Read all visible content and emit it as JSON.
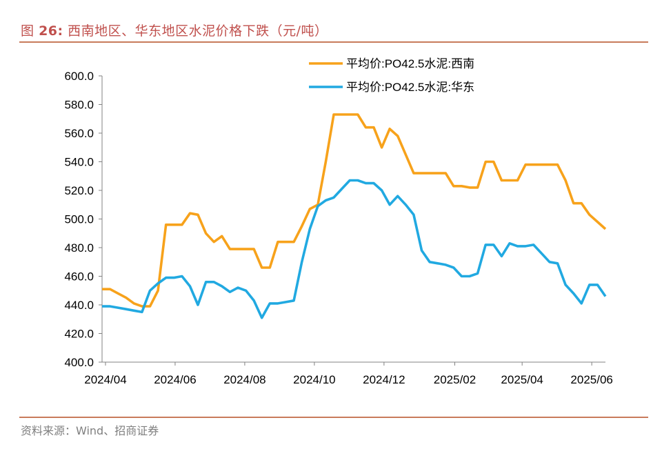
{
  "figure": {
    "label": "图",
    "number": "26:",
    "title": "西南地区、华东地区水泥价格下跌（元/吨）",
    "source": "资料来源：Wind、招商证券"
  },
  "chart_data": {
    "type": "line",
    "title": "西南地区、华东地区水泥价格下跌（元/吨）",
    "xlabel": "",
    "ylabel": "",
    "ylim": [
      400,
      600
    ],
    "y_ticks": [
      400,
      420,
      440,
      460,
      480,
      500,
      520,
      540,
      560,
      580,
      600
    ],
    "y_tick_labels": [
      "400.0",
      "420.0",
      "440.0",
      "460.0",
      "480.0",
      "500.0",
      "520.0",
      "540.0",
      "560.0",
      "580.0",
      "600.0"
    ],
    "x_range": [
      "2024-03-29",
      "2025-06-13"
    ],
    "x_tick_dates": [
      "2024-04-01",
      "2024-06-01",
      "2024-08-01",
      "2024-10-01",
      "2024-12-01",
      "2025-02-01",
      "2025-04-01",
      "2025-06-01"
    ],
    "x_tick_labels": [
      "2024/04",
      "2024/06",
      "2024/08",
      "2024/10",
      "2024/12",
      "2025/02",
      "2025/04",
      "2025/06"
    ],
    "grid": false,
    "legend_position": "top-right",
    "series": [
      {
        "name": "平均价:PO42.5水泥:西南",
        "color": "#f7a21b",
        "points": [
          [
            "2024-03-29",
            451
          ],
          [
            "2024-04-05",
            451
          ],
          [
            "2024-04-12",
            448
          ],
          [
            "2024-04-19",
            445
          ],
          [
            "2024-04-26",
            441
          ],
          [
            "2024-05-03",
            439
          ],
          [
            "2024-05-10",
            439
          ],
          [
            "2024-05-17",
            450
          ],
          [
            "2024-05-24",
            496
          ],
          [
            "2024-05-31",
            496
          ],
          [
            "2024-06-07",
            496
          ],
          [
            "2024-06-14",
            504
          ],
          [
            "2024-06-21",
            503
          ],
          [
            "2024-06-28",
            490
          ],
          [
            "2024-07-05",
            484
          ],
          [
            "2024-07-12",
            488
          ],
          [
            "2024-07-19",
            479
          ],
          [
            "2024-07-26",
            479
          ],
          [
            "2024-08-02",
            479
          ],
          [
            "2024-08-09",
            479
          ],
          [
            "2024-08-16",
            466
          ],
          [
            "2024-08-23",
            466
          ],
          [
            "2024-08-30",
            484
          ],
          [
            "2024-09-06",
            484
          ],
          [
            "2024-09-13",
            484
          ],
          [
            "2024-09-20",
            495
          ],
          [
            "2024-09-27",
            507
          ],
          [
            "2024-10-04",
            510
          ],
          [
            "2024-10-11",
            540
          ],
          [
            "2024-10-18",
            573
          ],
          [
            "2024-10-25",
            573
          ],
          [
            "2024-11-01",
            573
          ],
          [
            "2024-11-08",
            573
          ],
          [
            "2024-11-15",
            564
          ],
          [
            "2024-11-22",
            564
          ],
          [
            "2024-11-29",
            550
          ],
          [
            "2024-12-06",
            563
          ],
          [
            "2024-12-13",
            558
          ],
          [
            "2024-12-20",
            545
          ],
          [
            "2024-12-27",
            532
          ],
          [
            "2025-01-03",
            532
          ],
          [
            "2025-01-10",
            532
          ],
          [
            "2025-01-17",
            532
          ],
          [
            "2025-01-24",
            532
          ],
          [
            "2025-01-31",
            523
          ],
          [
            "2025-02-07",
            523
          ],
          [
            "2025-02-14",
            522
          ],
          [
            "2025-02-21",
            522
          ],
          [
            "2025-02-28",
            540
          ],
          [
            "2025-03-07",
            540
          ],
          [
            "2025-03-14",
            527
          ],
          [
            "2025-03-21",
            527
          ],
          [
            "2025-03-28",
            527
          ],
          [
            "2025-04-04",
            538
          ],
          [
            "2025-04-11",
            538
          ],
          [
            "2025-04-18",
            538
          ],
          [
            "2025-04-25",
            538
          ],
          [
            "2025-05-02",
            538
          ],
          [
            "2025-05-09",
            527
          ],
          [
            "2025-05-16",
            511
          ],
          [
            "2025-05-23",
            511
          ],
          [
            "2025-05-30",
            503
          ],
          [
            "2025-06-06",
            498
          ],
          [
            "2025-06-13",
            493
          ]
        ]
      },
      {
        "name": "平均价:PO42.5水泥:华东",
        "color": "#21a9e1",
        "points": [
          [
            "2024-03-29",
            439
          ],
          [
            "2024-04-05",
            439
          ],
          [
            "2024-04-12",
            438
          ],
          [
            "2024-04-19",
            437
          ],
          [
            "2024-04-26",
            436
          ],
          [
            "2024-05-03",
            435
          ],
          [
            "2024-05-10",
            450
          ],
          [
            "2024-05-17",
            455
          ],
          [
            "2024-05-24",
            459
          ],
          [
            "2024-05-31",
            459
          ],
          [
            "2024-06-07",
            460
          ],
          [
            "2024-06-14",
            453
          ],
          [
            "2024-06-21",
            440
          ],
          [
            "2024-06-28",
            456
          ],
          [
            "2024-07-05",
            456
          ],
          [
            "2024-07-12",
            453
          ],
          [
            "2024-07-19",
            449
          ],
          [
            "2024-07-26",
            452
          ],
          [
            "2024-08-02",
            450
          ],
          [
            "2024-08-09",
            443
          ],
          [
            "2024-08-16",
            431
          ],
          [
            "2024-08-23",
            441
          ],
          [
            "2024-08-30",
            441
          ],
          [
            "2024-09-06",
            442
          ],
          [
            "2024-09-13",
            443
          ],
          [
            "2024-09-20",
            470
          ],
          [
            "2024-09-27",
            493
          ],
          [
            "2024-10-04",
            509
          ],
          [
            "2024-10-11",
            513
          ],
          [
            "2024-10-18",
            515
          ],
          [
            "2024-10-25",
            521
          ],
          [
            "2024-11-01",
            527
          ],
          [
            "2024-11-08",
            527
          ],
          [
            "2024-11-15",
            525
          ],
          [
            "2024-11-22",
            525
          ],
          [
            "2024-11-29",
            520
          ],
          [
            "2024-12-06",
            510
          ],
          [
            "2024-12-13",
            516
          ],
          [
            "2024-12-20",
            510
          ],
          [
            "2024-12-27",
            503
          ],
          [
            "2025-01-03",
            478
          ],
          [
            "2025-01-10",
            470
          ],
          [
            "2025-01-17",
            469
          ],
          [
            "2025-01-24",
            468
          ],
          [
            "2025-01-31",
            466
          ],
          [
            "2025-02-07",
            460
          ],
          [
            "2025-02-14",
            460
          ],
          [
            "2025-02-21",
            462
          ],
          [
            "2025-02-28",
            482
          ],
          [
            "2025-03-07",
            482
          ],
          [
            "2025-03-14",
            474
          ],
          [
            "2025-03-21",
            483
          ],
          [
            "2025-03-28",
            481
          ],
          [
            "2025-04-04",
            481
          ],
          [
            "2025-04-11",
            482
          ],
          [
            "2025-04-18",
            476
          ],
          [
            "2025-04-25",
            470
          ],
          [
            "2025-05-02",
            469
          ],
          [
            "2025-05-09",
            454
          ],
          [
            "2025-05-16",
            448
          ],
          [
            "2025-05-23",
            441
          ],
          [
            "2025-05-30",
            454
          ],
          [
            "2025-06-06",
            454
          ],
          [
            "2025-06-13",
            446
          ]
        ]
      }
    ]
  }
}
